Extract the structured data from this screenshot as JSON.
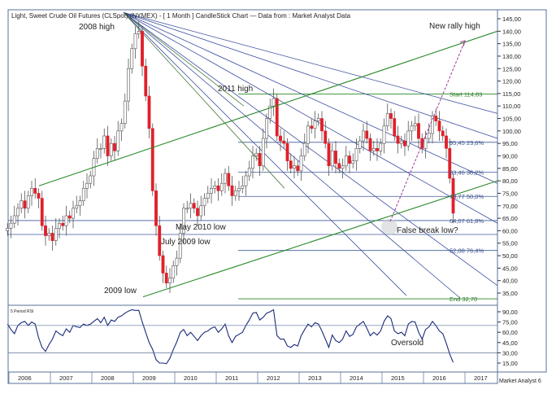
{
  "header": {
    "title": "Light, Sweet Crude Oil Futures (CLSpot) (NYMEX) -  [ 1 Month ] CandleStick Chart — Data from : Market Analyst Data"
  },
  "watermark": "Market Analyst 6",
  "rsi_label": "5 Period RSI",
  "chart_data": [
    {
      "type": "candlestick",
      "title": "Light, Sweet Crude Oil Futures (CLSpot) (NYMEX) -  [ 1 Month ] CandleStick Chart — Data from : Market Analyst Data",
      "x_ticks": [
        "2006",
        "2007",
        "2008",
        "2009",
        "2010",
        "2011",
        "2012",
        "2013",
        "2014",
        "2015",
        "2016",
        "2017"
      ],
      "y_ticks": [
        35,
        40,
        45,
        50,
        55,
        60,
        65,
        70,
        75,
        80,
        85,
        90,
        95,
        100,
        105,
        110,
        115,
        120,
        125,
        130,
        135,
        140,
        145
      ],
      "y_tick_labels": [
        "35,00",
        "40,00",
        "45,00",
        "50,00",
        "55,00",
        "60,00",
        "65,00",
        "70,00",
        "75,00",
        "80,00",
        "85,00",
        "90,00",
        "95,00",
        "100,00",
        "105,00",
        "110,00",
        "115,00",
        "120,00",
        "125,00",
        "130,00",
        "135,00",
        "140,00",
        "145,00"
      ],
      "ylim": [
        30,
        148
      ],
      "xlim": [
        2005.75,
        2017.75
      ],
      "candles_close": [
        61,
        63,
        66,
        69,
        72,
        69,
        74,
        77,
        75,
        73,
        62,
        58,
        59,
        56,
        61,
        63,
        62,
        66,
        65,
        69,
        70,
        72,
        77,
        79,
        82,
        89,
        93,
        93,
        98,
        90,
        95,
        92,
        100,
        103,
        112,
        125,
        133,
        139,
        140,
        126,
        114,
        101,
        76,
        62,
        50,
        43,
        39,
        41,
        46,
        49,
        59,
        69,
        69,
        71,
        69,
        66,
        70,
        73,
        75,
        77,
        78,
        76,
        79,
        83,
        78,
        74,
        76,
        77,
        78,
        82,
        85,
        90,
        91,
        86,
        97,
        105,
        110,
        113,
        98,
        96,
        95,
        88,
        85,
        86,
        84,
        90,
        95,
        102,
        101,
        104,
        105,
        100,
        95,
        86,
        92,
        87,
        85,
        86,
        90,
        87,
        88,
        93,
        96,
        100,
        97,
        92,
        93,
        92,
        95,
        102,
        107,
        105,
        98,
        95,
        96,
        94,
        100,
        102,
        103,
        97,
        93,
        97,
        99,
        106,
        104,
        100,
        98,
        93,
        81,
        67
      ],
      "levels": [
        {
          "label": "Start 114,83",
          "value": 114.83
        },
        {
          "label": "95,45 23,6%",
          "value": 95.45
        },
        {
          "label": "83,46 38,2%",
          "value": 83.46
        },
        {
          "label": "73,77 50,0%",
          "value": 73.77
        },
        {
          "label": "64,07 61,8%",
          "value": 64.07
        },
        {
          "label": "52,08 76,4%",
          "value": 52.08
        },
        {
          "label": "End 32,70",
          "value": 32.7
        }
      ],
      "annotations": [
        "2008 high",
        "2011 high",
        "New rally high",
        "May 2010 low",
        "July 2009 low",
        "2009 low",
        "False break low?"
      ]
    },
    {
      "type": "line",
      "title": "5 Period RSI",
      "y_ticks": [
        15,
        30,
        45,
        60,
        75,
        90
      ],
      "y_tick_labels": [
        "15,00",
        "30,00",
        "45,00",
        "60,00",
        "75,00",
        "90,00"
      ],
      "ylim": [
        4,
        97
      ],
      "annotations": [
        "Oversold"
      ],
      "values": [
        72,
        64,
        58,
        70,
        74,
        76,
        70,
        75,
        72,
        52,
        38,
        32,
        42,
        50,
        62,
        58,
        55,
        65,
        60,
        70,
        68,
        67,
        72,
        70,
        72,
        76,
        80,
        74,
        82,
        70,
        78,
        76,
        82,
        84,
        88,
        91,
        93,
        92,
        92,
        75,
        60,
        45,
        35,
        20,
        15,
        15,
        14,
        22,
        35,
        46,
        60,
        64,
        55,
        60,
        54,
        48,
        55,
        60,
        62,
        66,
        68,
        60,
        65,
        72,
        55,
        45,
        54,
        57,
        60,
        70,
        78,
        88,
        89,
        78,
        82,
        88,
        90,
        93,
        55,
        50,
        50,
        40,
        38,
        42,
        40,
        55,
        64,
        72,
        68,
        74,
        72,
        62,
        50,
        38,
        56,
        48,
        45,
        50,
        62,
        54,
        57,
        68,
        72,
        76,
        66,
        55,
        60,
        56,
        62,
        76,
        84,
        80,
        62,
        58,
        60,
        55,
        72,
        76,
        75,
        60,
        50,
        64,
        68,
        76,
        70,
        62,
        58,
        44,
        28,
        16
      ]
    }
  ]
}
